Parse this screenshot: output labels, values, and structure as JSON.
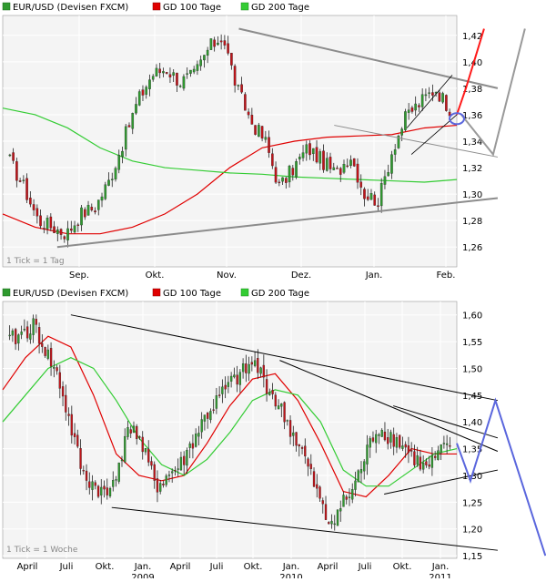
{
  "colors": {
    "background": "#ffffff",
    "plot_background": "#f4f4f4",
    "grid": "#ffffff",
    "frame": "#999999",
    "candle_up": "#2f9a2f",
    "candle_down": "#c0141a",
    "wick": "#222222",
    "ma100": "#e00000",
    "ma200": "#33cc33",
    "trendline_gray": "#8c8c8c",
    "trendline_black": "#000000",
    "arrow_red": "#ff1a1a",
    "arrow_blue": "#5a66dd",
    "arrow_gray": "#999999"
  },
  "panels": [
    {
      "id": "daily",
      "legend": [
        {
          "label": "EUR/USD (Devisen FXCM)",
          "color": "#2f9a2f",
          "icon": "legend-swatch-icon"
        },
        {
          "label": "GD 100 Tage",
          "color": "#e00000",
          "icon": "legend-swatch-icon"
        },
        {
          "label": "GD 200 Tage",
          "color": "#33cc33",
          "icon": "legend-swatch-icon"
        }
      ],
      "interval_label": "1 Tick = 1 Tag",
      "y_ticks": [
        "1,42",
        "1,40",
        "1,38",
        "1,36",
        "1,34",
        "1,32",
        "1,30",
        "1,28",
        "1,26"
      ],
      "x_ticks": [
        "Sep.",
        "Okt.",
        "Nov.",
        "Dez.",
        "Jan.",
        "Feb."
      ]
    },
    {
      "id": "weekly",
      "legend": [
        {
          "label": "EUR/USD (Devisen FXCM)",
          "color": "#2f9a2f",
          "icon": "legend-swatch-icon"
        },
        {
          "label": "GD 100 Tage",
          "color": "#e00000",
          "icon": "legend-swatch-icon"
        },
        {
          "label": "GD 200 Tage",
          "color": "#33cc33",
          "icon": "legend-swatch-icon"
        }
      ],
      "interval_label": "1 Tick = 1 Woche",
      "y_ticks": [
        "1,60",
        "1,55",
        "1,50",
        "1,45",
        "1,40",
        "1,35",
        "1,30",
        "1,25",
        "1,20",
        "1,15"
      ],
      "x_ticks": [
        "April",
        "Juli",
        "Okt.",
        "Jan.",
        "April",
        "Juli",
        "Okt.",
        "Jan.",
        "April",
        "Juli",
        "Okt.",
        "Jan."
      ],
      "x_years": [
        "2009",
        "2010",
        "2011"
      ]
    }
  ],
  "chart_data": [
    {
      "type": "candlestick",
      "title": "EUR/USD (Devisen FXCM)",
      "interval": "1 Tick = 1 Tag",
      "ylim": [
        1.245,
        1.435
      ],
      "series": [
        {
          "name": "EUR/USD (Devisen FXCM)",
          "kind": "candles",
          "close_path": [
            [
              "Aug.",
              1.325
            ],
            [
              "Aug.",
              1.305
            ],
            [
              "Aug.",
              1.28
            ],
            [
              "Sep.",
              1.275
            ],
            [
              "Sep.",
              1.27
            ],
            [
              "Sep.",
              1.285
            ],
            [
              "Sep.",
              1.29
            ],
            [
              "Sep.",
              1.31
            ],
            [
              "Sep.",
              1.34
            ],
            [
              "Okt.",
              1.37
            ],
            [
              "Okt.",
              1.39
            ],
            [
              "Okt.",
              1.395
            ],
            [
              "Okt.",
              1.385
            ],
            [
              "Okt.",
              1.39
            ],
            [
              "Nov.",
              1.41
            ],
            [
              "Nov.",
              1.42
            ],
            [
              "Nov.",
              1.38
            ],
            [
              "Nov.",
              1.355
            ],
            [
              "Nov.",
              1.34
            ],
            [
              "Dez.",
              1.305
            ],
            [
              "Dez.",
              1.32
            ],
            [
              "Dez.",
              1.335
            ],
            [
              "Dez.",
              1.325
            ],
            [
              "Dez.",
              1.315
            ],
            [
              "Jan.",
              1.33
            ],
            [
              "Jan.",
              1.3
            ],
            [
              "Jan.",
              1.295
            ],
            [
              "Jan.",
              1.335
            ],
            [
              "Jan.",
              1.36
            ],
            [
              "Jan.",
              1.37
            ],
            [
              "Feb.",
              1.38
            ],
            [
              "Feb.",
              1.365
            ]
          ]
        },
        {
          "name": "GD 100 Tage",
          "kind": "line",
          "values": [
            1.285,
            1.275,
            1.27,
            1.27,
            1.275,
            1.285,
            1.3,
            1.32,
            1.335,
            1.34,
            1.343,
            1.344,
            1.345,
            1.35,
            1.352
          ]
        },
        {
          "name": "GD 200 Tage",
          "kind": "line",
          "values": [
            1.365,
            1.36,
            1.35,
            1.335,
            1.325,
            1.32,
            1.318,
            1.316,
            1.315,
            1.313,
            1.312,
            1.311,
            1.31,
            1.309,
            1.311
          ]
        }
      ],
      "x_ticks": [
        "Sep.",
        "Okt.",
        "Nov.",
        "Dez.",
        "Jan.",
        "Feb."
      ],
      "y_ticks": [
        1.42,
        1.4,
        1.38,
        1.36,
        1.34,
        1.32,
        1.3,
        1.28,
        1.26
      ],
      "trendlines": [
        {
          "kind": "resistance",
          "from": [
            "Nov.",
            1.425
          ],
          "to": [
            "Feb.+",
            1.38
          ]
        },
        {
          "kind": "support",
          "from": [
            "Sep.",
            1.26
          ],
          "to": [
            "Feb.+",
            1.297
          ]
        },
        {
          "kind": "channel",
          "from": [
            "Dez.",
            1.35
          ],
          "to": [
            "Feb.+",
            1.33
          ]
        }
      ],
      "projection_arrows": [
        "up (red)",
        "up/down zigzag (gray)",
        "retest marker circle (blue)"
      ]
    },
    {
      "type": "candlestick",
      "title": "EUR/USD (Devisen FXCM)",
      "interval": "1 Tick = 1 Woche",
      "ylim": [
        1.145,
        1.625
      ],
      "series": [
        {
          "name": "EUR/USD (Devisen FXCM)",
          "kind": "candles",
          "close_path": [
            [
              "Apr 2008",
              1.55
            ],
            [
              "Juli 2008",
              1.58
            ],
            [
              "Aug 2008",
              1.48
            ],
            [
              "Okt 2008",
              1.3
            ],
            [
              "Nov 2008",
              1.26
            ],
            [
              "Dez 2008",
              1.4
            ],
            [
              "Feb 2009",
              1.28
            ],
            [
              "Apr 2009",
              1.32
            ],
            [
              "Juli 2009",
              1.41
            ],
            [
              "Okt 2009",
              1.47
            ],
            [
              "Dez 2009",
              1.51
            ],
            [
              "Jan 2010",
              1.43
            ],
            [
              "Apr 2010",
              1.34
            ],
            [
              "Juni 2010",
              1.21
            ],
            [
              "Juli 2010",
              1.27
            ],
            [
              "Okt 2010",
              1.39
            ],
            [
              "Nov 2010",
              1.36
            ],
            [
              "Dez 2010",
              1.31
            ],
            [
              "Jan 2011",
              1.36
            ]
          ]
        },
        {
          "name": "GD 100 Tage",
          "kind": "line"
        },
        {
          "name": "GD 200 Tage",
          "kind": "line"
        }
      ],
      "x_ticks": [
        "April",
        "Juli",
        "Okt.",
        "Jan.",
        "April",
        "Juli",
        "Okt.",
        "Jan.",
        "April",
        "Juli",
        "Okt.",
        "Jan."
      ],
      "x_years": [
        "2009",
        "2010",
        "2011"
      ],
      "y_ticks": [
        1.6,
        1.55,
        1.5,
        1.45,
        1.4,
        1.35,
        1.3,
        1.25,
        1.2,
        1.15
      ],
      "trendlines": [
        {
          "kind": "resistance",
          "from": [
            "Juli 2008",
            1.6
          ],
          "to": [
            "Feb 2011",
            1.44
          ]
        },
        {
          "kind": "resistance",
          "from": [
            "Dez 2009",
            1.51
          ],
          "to": [
            "Feb 2011",
            1.34
          ]
        },
        {
          "kind": "support",
          "from": [
            "Nov 2008",
            1.24
          ],
          "to": [
            "Feb 2011",
            1.16
          ]
        },
        {
          "kind": "support",
          "from": [
            "Sep 2010",
            1.26
          ],
          "to": [
            "Feb 2011",
            1.31
          ]
        }
      ],
      "projection_arrows": [
        "zigzag down then up to 1.44 then down below 1.15 (blue)"
      ]
    }
  ]
}
